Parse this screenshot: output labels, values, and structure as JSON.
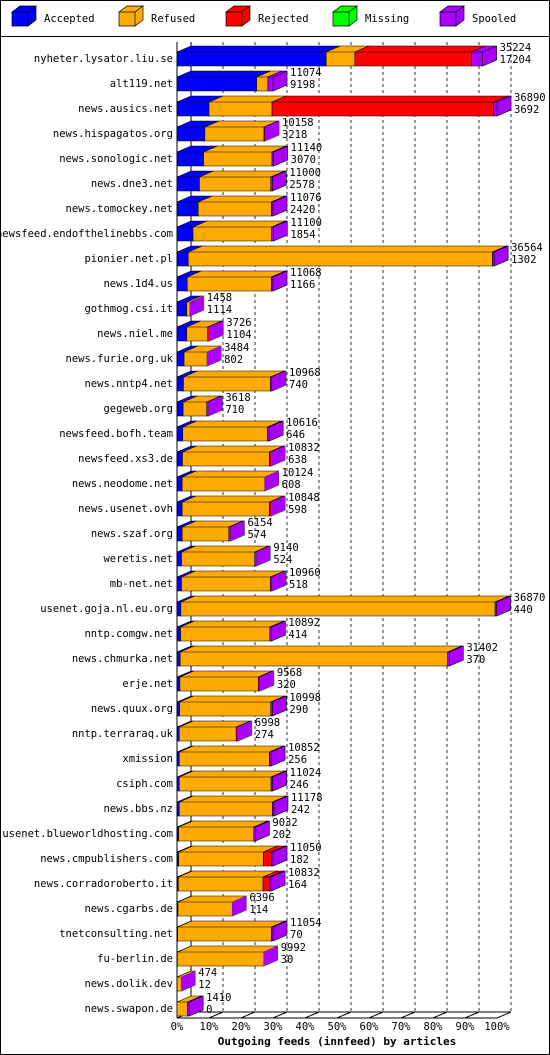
{
  "chart_data": {
    "type": "bar",
    "orientation": "horizontal",
    "stacked": true,
    "xlabel": "Outgoing feeds (innfeed) by articles",
    "categories": [
      "nyheter.lysator.liu.se",
      "alt119.net",
      "news.ausics.net",
      "news.hispagatos.org",
      "news.sonologic.net",
      "news.dne3.net",
      "news.tomockey.net",
      "newsfeed.endofthelinebbs.com",
      "pionier.net.pl",
      "news.1d4.us",
      "gothmog.csi.it",
      "news.niel.me",
      "news.furie.org.uk",
      "news.nntp4.net",
      "gegeweb.org",
      "newsfeed.bofh.team",
      "newsfeed.xs3.de",
      "news.neodome.net",
      "news.usenet.ovh",
      "news.szaf.org",
      "weretis.net",
      "mb-net.net",
      "usenet.goja.nl.eu.org",
      "nntp.comgw.net",
      "news.chmurka.net",
      "erje.net",
      "news.quux.org",
      "nntp.terraraq.uk",
      "xmission",
      "csiph.com",
      "news.bbs.nz",
      "usenet.blueworldhosting.com",
      "news.cmpublishers.com",
      "news.corradoroberto.it",
      "news.cgarbs.de",
      "tnetconsulting.net",
      "fu-berlin.de",
      "news.dolik.dev",
      "news.swapon.de"
    ],
    "offered": [
      35224,
      11074,
      36890,
      10158,
      11140,
      11000,
      11076,
      11100,
      36564,
      11068,
      1458,
      3726,
      3484,
      10968,
      3618,
      10616,
      10832,
      10124,
      10848,
      6154,
      9140,
      10960,
      36870,
      10892,
      31402,
      9568,
      10998,
      6998,
      10852,
      11024,
      11178,
      9032,
      11050,
      10832,
      6396,
      11054,
      9992,
      474,
      1410
    ],
    "accepted": [
      17204,
      9198,
      3692,
      3218,
      3070,
      2578,
      2420,
      1854,
      1302,
      1166,
      1114,
      1104,
      802,
      740,
      710,
      646,
      638,
      608,
      598,
      574,
      524,
      518,
      440,
      414,
      370,
      320,
      290,
      274,
      256,
      246,
      242,
      202,
      182,
      164,
      114,
      70,
      30,
      12,
      0
    ],
    "series": [
      {
        "name": "Accepted",
        "color": "#0000ff",
        "values": [
          46.6,
          24.9,
          10.0,
          8.7,
          8.3,
          7.0,
          6.6,
          5.0,
          3.5,
          3.2,
          3.0,
          3.0,
          2.2,
          2.0,
          1.9,
          1.8,
          1.7,
          1.6,
          1.6,
          1.6,
          1.4,
          1.4,
          1.2,
          1.1,
          1.0,
          0.9,
          0.8,
          0.7,
          0.7,
          0.7,
          0.7,
          0.5,
          0.5,
          0.4,
          0.3,
          0.2,
          0.1,
          0.03,
          0
        ]
      },
      {
        "name": "Refused",
        "color": "#ffaa00",
        "values": [
          9.0,
          3.5,
          19.7,
          18.5,
          21.4,
          22.3,
          22.9,
          24.6,
          95.1,
          26.3,
          1.0,
          6.6,
          7.2,
          27.2,
          7.4,
          26.5,
          27.2,
          25.8,
          27.3,
          14.6,
          22.9,
          27.8,
          98.2,
          27.9,
          83.6,
          24.5,
          28.5,
          17.8,
          28.2,
          28.7,
          29.1,
          23.5,
          26.5,
          26.5,
          17.0,
          29.3,
          27.0,
          1.3,
          3.3
        ]
      },
      {
        "name": "Rejected",
        "color": "#ff0000",
        "values": [
          36.4,
          0,
          69.3,
          0.3,
          0,
          0,
          0,
          0,
          0,
          0,
          0,
          0.5,
          0,
          0.5,
          0.5,
          0,
          0.5,
          0,
          0.5,
          0.5,
          0.5,
          0.5,
          0,
          0,
          0,
          0.5,
          0,
          0.5,
          0,
          0,
          0,
          0,
          2.5,
          2.0,
          0,
          0,
          0,
          0,
          0
        ]
      },
      {
        "name": "Missing",
        "color": "#00ff00",
        "values": [
          0,
          0,
          0,
          0,
          0,
          0,
          0,
          0,
          0,
          0,
          0,
          0,
          0,
          0,
          0,
          0,
          0,
          0,
          0,
          0,
          0,
          0,
          0,
          0,
          0,
          0,
          0,
          0,
          0,
          0,
          0,
          0,
          0,
          0,
          0,
          0,
          0,
          0,
          0
        ]
      },
      {
        "name": "Spooled",
        "color": "#aa00ff",
        "values": [
          3.5,
          1.6,
          1.0,
          0,
          0.5,
          0.5,
          0.5,
          0.5,
          0.5,
          0.5,
          0,
          0,
          0,
          0,
          0,
          0.5,
          0,
          0,
          0,
          0,
          0,
          0,
          0.5,
          0.5,
          0.5,
          0,
          0.5,
          0,
          0.5,
          0.5,
          0.5,
          0.5,
          0.5,
          0.5,
          0,
          0.5,
          0,
          0,
          0.5
        ]
      }
    ],
    "xlim": [
      0,
      100
    ],
    "xticks": [
      {
        "value": 0,
        "label": "0%"
      },
      {
        "value": 10,
        "label": "10%"
      },
      {
        "value": 20,
        "label": "20%"
      },
      {
        "value": 30,
        "label": "30%"
      },
      {
        "value": 40,
        "label": "40%"
      },
      {
        "value": 50,
        "label": "50%"
      },
      {
        "value": 60,
        "label": "60%"
      },
      {
        "value": 70,
        "label": "70%"
      },
      {
        "value": 80,
        "label": "80%"
      },
      {
        "value": 90,
        "label": "90%"
      },
      {
        "value": 100,
        "label": "100%"
      }
    ],
    "grid": true
  }
}
